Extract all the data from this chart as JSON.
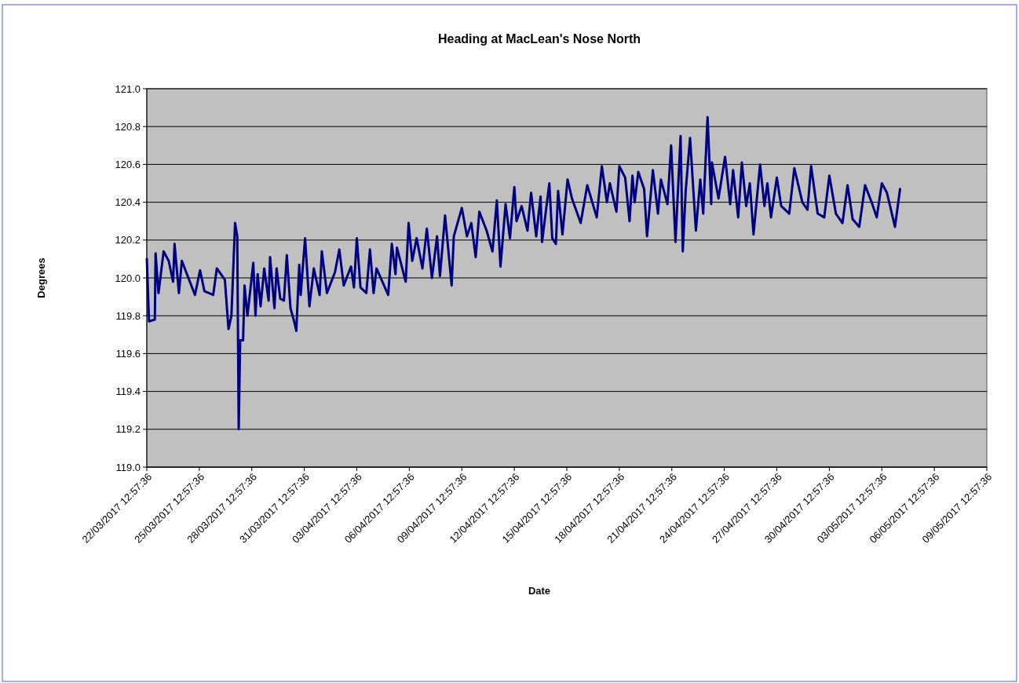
{
  "chart_data": {
    "type": "line",
    "title": "Heading at MacLean's Nose North",
    "xlabel": "Date",
    "ylabel": "Degrees",
    "grid": "y",
    "marker": "none",
    "line_style": "solid",
    "xlim": [
      "2017-03-22T12:57:36",
      "2017-05-09T12:57:36"
    ],
    "xticks": [
      {
        "value": "2017-03-22T12:57:36",
        "label": "22/03/2017 12:57:36"
      },
      {
        "value": "2017-03-25T12:57:36",
        "label": "25/03/2017 12:57:36"
      },
      {
        "value": "2017-03-28T12:57:36",
        "label": "28/03/2017 12:57:36"
      },
      {
        "value": "2017-03-31T12:57:36",
        "label": "31/03/2017 12:57:36"
      },
      {
        "value": "2017-04-03T12:57:36",
        "label": "03/04/2017 12:57:36"
      },
      {
        "value": "2017-04-06T12:57:36",
        "label": "06/04/2017 12:57:36"
      },
      {
        "value": "2017-04-09T12:57:36",
        "label": "09/04/2017 12:57:36"
      },
      {
        "value": "2017-04-12T12:57:36",
        "label": "12/04/2017 12:57:36"
      },
      {
        "value": "2017-04-15T12:57:36",
        "label": "15/04/2017 12:57:36"
      },
      {
        "value": "2017-04-18T12:57:36",
        "label": "18/04/2017 12:57:36"
      },
      {
        "value": "2017-04-21T12:57:36",
        "label": "21/04/2017 12:57:36"
      },
      {
        "value": "2017-04-24T12:57:36",
        "label": "24/04/2017 12:57:36"
      },
      {
        "value": "2017-04-27T12:57:36",
        "label": "27/04/2017 12:57:36"
      },
      {
        "value": "2017-04-30T12:57:36",
        "label": "30/04/2017 12:57:36"
      },
      {
        "value": "2017-05-03T12:57:36",
        "label": "03/05/2017 12:57:36"
      },
      {
        "value": "2017-05-06T12:57:36",
        "label": "06/05/2017 12:57:36"
      },
      {
        "value": "2017-05-09T12:57:36",
        "label": "09/05/2017 12:57:36"
      }
    ],
    "ylim": [
      119,
      121
    ],
    "yticks": [
      {
        "value": 119,
        "label": "119.0"
      },
      {
        "value": 119.2,
        "label": "119.2"
      },
      {
        "value": 119.4,
        "label": "119.4"
      },
      {
        "value": 119.6,
        "label": "119.6"
      },
      {
        "value": 119.8,
        "label": "119.8"
      },
      {
        "value": 120,
        "label": "120.0"
      },
      {
        "value": 120.2,
        "label": "120.2"
      },
      {
        "value": 120.4,
        "label": "120.4"
      },
      {
        "value": 120.6,
        "label": "120.6"
      },
      {
        "value": 120.8,
        "label": "120.8"
      },
      {
        "value": 121,
        "label": "121.0"
      }
    ],
    "series": [
      {
        "color": "#000080",
        "x": [
          "2017-03-22T13:00",
          "2017-03-22T16:00",
          "2017-03-23T00:00",
          "2017-03-23T01:00",
          "2017-03-23T05:00",
          "2017-03-23T12:00",
          "2017-03-23T19:00",
          "2017-03-24T01:00",
          "2017-03-24T03:00",
          "2017-03-24T09:00",
          "2017-03-24T13:00",
          "2017-03-25T07:00",
          "2017-03-25T14:00",
          "2017-03-25T20:00",
          "2017-03-26T08:00",
          "2017-03-26T13:00",
          "2017-03-27T00:00",
          "2017-03-27T05:00",
          "2017-03-27T09:00",
          "2017-03-27T14:00",
          "2017-03-27T17:00",
          "2017-03-27T19:00",
          "2017-03-27T21:00",
          "2017-03-28T01:00",
          "2017-03-28T03:00",
          "2017-03-28T07:00",
          "2017-03-28T15:00",
          "2017-03-28T18:00",
          "2017-03-28T21:00",
          "2017-03-29T01:00",
          "2017-03-29T06:00",
          "2017-03-29T12:00",
          "2017-03-29T14:00",
          "2017-03-29T20:00",
          "2017-03-29T23:00",
          "2017-03-30T04:00",
          "2017-03-30T09:00",
          "2017-03-30T13:00",
          "2017-03-30T18:00",
          "2017-03-30T23:00",
          "2017-03-31T02:00",
          "2017-03-31T06:00",
          "2017-03-31T08:00",
          "2017-03-31T14:00",
          "2017-03-31T20:00",
          "2017-04-01T02:00",
          "2017-04-01T10:00",
          "2017-04-01T13:00",
          "2017-04-01T20:00",
          "2017-04-02T07:00",
          "2017-04-02T13:00",
          "2017-04-02T19:00",
          "2017-04-03T05:00",
          "2017-04-03T09:00",
          "2017-04-03T13:00",
          "2017-04-03T18:00",
          "2017-04-04T02:00",
          "2017-04-04T07:00",
          "2017-04-04T12:00",
          "2017-04-04T16:00",
          "2017-04-05T08:00",
          "2017-04-05T13:00",
          "2017-04-05T18:00",
          "2017-04-05T20:00",
          "2017-04-06T08:00",
          "2017-04-06T12:00",
          "2017-04-06T17:00",
          "2017-04-06T23:00",
          "2017-04-07T07:00",
          "2017-04-07T13:00",
          "2017-04-07T20:00",
          "2017-04-08T03:00",
          "2017-04-08T07:00",
          "2017-04-08T14:00",
          "2017-04-08T23:00",
          "2017-04-09T02:00",
          "2017-04-09T13:00",
          "2017-04-09T20:00",
          "2017-04-10T02:00",
          "2017-04-10T08:00",
          "2017-04-10T13:00",
          "2017-04-10T23:00",
          "2017-04-11T07:00",
          "2017-04-11T13:00",
          "2017-04-11T18:00",
          "2017-04-12T01:00",
          "2017-04-12T07:00",
          "2017-04-12T13:00",
          "2017-04-12T16:00",
          "2017-04-12T23:00",
          "2017-04-13T07:00",
          "2017-04-13T12:00",
          "2017-04-13T19:00",
          "2017-04-14T01:00",
          "2017-04-14T03:00",
          "2017-04-14T13:00",
          "2017-04-14T17:00",
          "2017-04-14T22:00",
          "2017-04-15T01:00",
          "2017-04-15T07:00",
          "2017-04-15T14:00",
          "2017-04-15T20:00",
          "2017-04-16T08:00",
          "2017-04-16T17:00",
          "2017-04-17T06:00",
          "2017-04-17T13:00",
          "2017-04-17T20:00",
          "2017-04-18T00:00",
          "2017-04-18T09:00",
          "2017-04-18T13:00",
          "2017-04-18T21:00",
          "2017-04-19T03:00",
          "2017-04-19T07:00",
          "2017-04-19T10:00",
          "2017-04-19T15:00",
          "2017-04-19T23:00",
          "2017-04-20T03:00",
          "2017-04-20T11:00",
          "2017-04-20T18:00",
          "2017-04-20T22:00",
          "2017-04-21T07:00",
          "2017-04-21T12:00",
          "2017-04-21T18:00",
          "2017-04-22T01:00",
          "2017-04-22T04:00",
          "2017-04-22T08:00",
          "2017-04-22T14:00",
          "2017-04-22T22:00",
          "2017-04-23T04:00",
          "2017-04-23T08:00",
          "2017-04-23T14:00",
          "2017-04-23T19:00",
          "2017-04-23T20:00",
          "2017-04-24T05:00",
          "2017-04-24T14:00",
          "2017-04-24T21:00",
          "2017-04-25T01:00",
          "2017-04-25T08:00",
          "2017-04-25T13:00",
          "2017-04-25T19:00",
          "2017-04-26T00:00",
          "2017-04-26T05:00",
          "2017-04-26T14:00",
          "2017-04-26T20:00",
          "2017-04-27T00:00",
          "2017-04-27T05:00",
          "2017-04-27T13:00",
          "2017-04-27T19:00",
          "2017-04-28T06:00",
          "2017-04-28T13:00",
          "2017-04-29T00:00",
          "2017-04-29T07:00",
          "2017-04-29T12:00",
          "2017-04-29T21:00",
          "2017-04-30T06:00",
          "2017-04-30T13:00",
          "2017-04-30T22:00",
          "2017-05-01T07:00",
          "2017-05-01T14:00",
          "2017-05-01T21:00",
          "2017-05-02T06:00",
          "2017-05-02T14:00",
          "2017-05-02T23:00",
          "2017-05-03T06:00",
          "2017-05-03T13:00",
          "2017-05-03T20:00",
          "2017-05-04T07:00",
          "2017-05-04T14:00"
        ],
        "values": [
          120.1,
          119.77,
          119.78,
          120.13,
          119.92,
          120.14,
          120.09,
          119.98,
          120.18,
          119.92,
          120.09,
          119.91,
          120.04,
          119.93,
          119.91,
          120.05,
          119.99,
          119.73,
          119.8,
          120.29,
          120.22,
          119.2,
          119.67,
          119.67,
          119.96,
          119.8,
          120.08,
          119.8,
          120.02,
          119.85,
          120.05,
          119.88,
          120.11,
          119.84,
          120.05,
          119.89,
          119.88,
          120.12,
          119.84,
          119.77,
          119.72,
          120.07,
          119.91,
          120.21,
          119.85,
          120.05,
          119.91,
          120.14,
          119.92,
          120.03,
          120.15,
          119.96,
          120.06,
          119.95,
          120.21,
          119.95,
          119.92,
          120.15,
          119.92,
          120.05,
          119.91,
          120.18,
          120.02,
          120.16,
          119.98,
          120.29,
          120.09,
          120.21,
          120.05,
          120.26,
          120,
          120.22,
          120.01,
          120.33,
          119.96,
          120.22,
          120.37,
          120.22,
          120.29,
          120.11,
          120.35,
          120.25,
          120.14,
          120.41,
          120.06,
          120.39,
          120.21,
          120.48,
          120.3,
          120.38,
          120.25,
          120.45,
          120.22,
          120.43,
          120.19,
          120.5,
          120.21,
          120.18,
          120.46,
          120.23,
          120.52,
          120.42,
          120.29,
          120.49,
          120.32,
          120.59,
          120.4,
          120.5,
          120.35,
          120.59,
          120.53,
          120.3,
          120.54,
          120.4,
          120.56,
          120.47,
          120.22,
          120.57,
          120.34,
          120.52,
          120.39,
          120.7,
          120.19,
          120.75,
          120.14,
          120.46,
          120.74,
          120.25,
          120.52,
          120.34,
          120.85,
          120.39,
          120.61,
          120.42,
          120.64,
          120.39,
          120.57,
          120.32,
          120.61,
          120.38,
          120.5,
          120.23,
          120.6,
          120.38,
          120.5,
          120.32,
          120.53,
          120.38,
          120.34,
          120.58,
          120.4,
          120.36,
          120.59,
          120.34,
          120.32,
          120.54,
          120.34,
          120.29,
          120.49,
          120.31,
          120.27,
          120.49,
          120.4,
          120.32,
          120.5,
          120.45,
          120.27,
          120.47
        ]
      }
    ]
  }
}
